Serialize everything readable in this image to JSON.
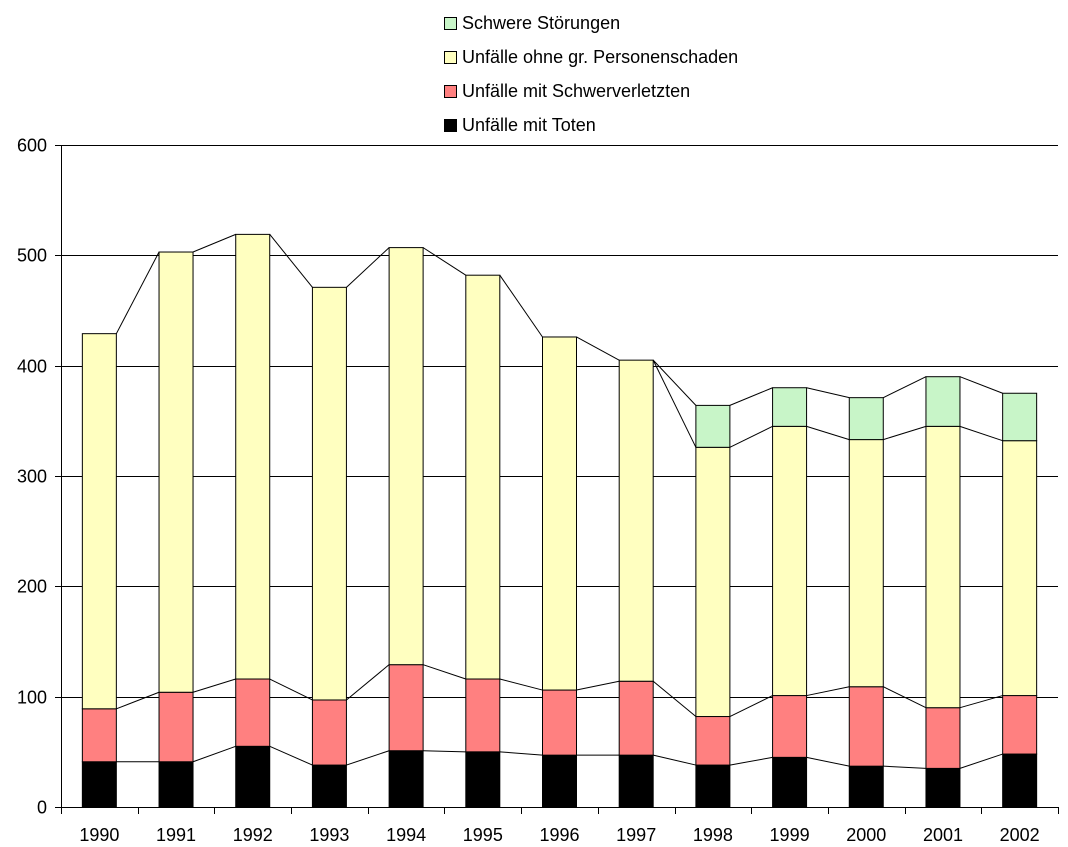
{
  "chart_data": {
    "type": "bar",
    "stacked": true,
    "categories": [
      "1990",
      "1991",
      "1992",
      "1993",
      "1994",
      "1995",
      "1996",
      "1997",
      "1998",
      "1999",
      "2000",
      "2001",
      "2002"
    ],
    "series": [
      {
        "name": "Unfälle mit Toten",
        "color": "#000000",
        "values": [
          41,
          41,
          55,
          38,
          51,
          50,
          47,
          47,
          38,
          45,
          37,
          35,
          48
        ]
      },
      {
        "name": "Unfälle mit Schwerverletzten",
        "color": "#ff8080",
        "values": [
          48,
          63,
          61,
          59,
          78,
          66,
          59,
          67,
          44,
          56,
          72,
          55,
          53
        ]
      },
      {
        "name": "Unfälle ohne gr. Personenschaden",
        "color": "#ffffc0",
        "values": [
          340,
          399,
          403,
          374,
          378,
          366,
          320,
          291,
          244,
          244,
          224,
          255,
          231
        ]
      },
      {
        "name": "Schwere Störungen",
        "color": "#c8f5c8",
        "values": [
          0,
          0,
          0,
          0,
          0,
          0,
          0,
          0,
          38,
          35,
          38,
          45,
          43
        ]
      }
    ],
    "ylim": [
      0,
      600
    ],
    "yticks": [
      0,
      100,
      200,
      300,
      400,
      500,
      600
    ],
    "grid": true,
    "legend_position": "top",
    "legend_order": [
      "Schwere Störungen",
      "Unfälle ohne gr. Personenschaden",
      "Unfälle mit Schwerverletzten",
      "Unfälle mit Toten"
    ],
    "series_lines": true,
    "title": "",
    "xlabel": "",
    "ylabel": ""
  }
}
